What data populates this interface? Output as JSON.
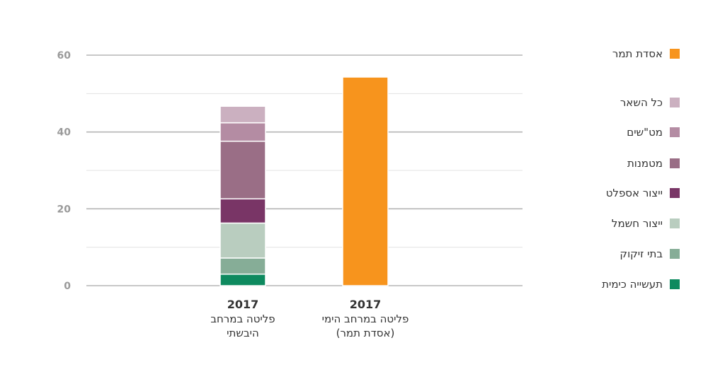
{
  "chart_data": {
    "type": "bar",
    "stacked": true,
    "ylim": [
      0,
      60
    ],
    "yticks": [
      0,
      20,
      40,
      60
    ],
    "grid": true,
    "legend_position": "right",
    "categories": [
      {
        "year": "2017",
        "label_lines": [
          "פליטה במרחב",
          "היבשתי"
        ]
      },
      {
        "year": "2017",
        "label_lines": [
          "פליטה במרחב הימי",
          "(אסדת תמר)"
        ]
      }
    ],
    "series": [
      {
        "name": "תעשייה כימית",
        "color": "#0e8a5f",
        "values": [
          3.0,
          0
        ]
      },
      {
        "name": "בתי זיקוק",
        "color": "#86ad97",
        "values": [
          4.2,
          0
        ]
      },
      {
        "name": "ייצור חשמל",
        "color": "#b9cdbf",
        "values": [
          9.1,
          0
        ]
      },
      {
        "name": "ייצור אספלט",
        "color": "#793566",
        "values": [
          6.3,
          0
        ]
      },
      {
        "name": "מטמנות",
        "color": "#9a6e86",
        "values": [
          15.0,
          0
        ]
      },
      {
        "name": "מט\"שים",
        "color": "#b48ca3",
        "values": [
          4.8,
          0
        ]
      },
      {
        "name": "כל השאר",
        "color": "#cbb0c0",
        "values": [
          4.3,
          0
        ]
      },
      {
        "name": "אסדת תמר",
        "color": "#f7941d",
        "values": [
          0,
          54.3
        ]
      }
    ],
    "legend_order": [
      "אסדת תמר",
      "כל השאר",
      "מט\"שים",
      "מטמנות",
      "ייצור אספלט",
      "ייצור חשמל",
      "בתי זיקוק",
      "תעשייה כימית"
    ]
  }
}
